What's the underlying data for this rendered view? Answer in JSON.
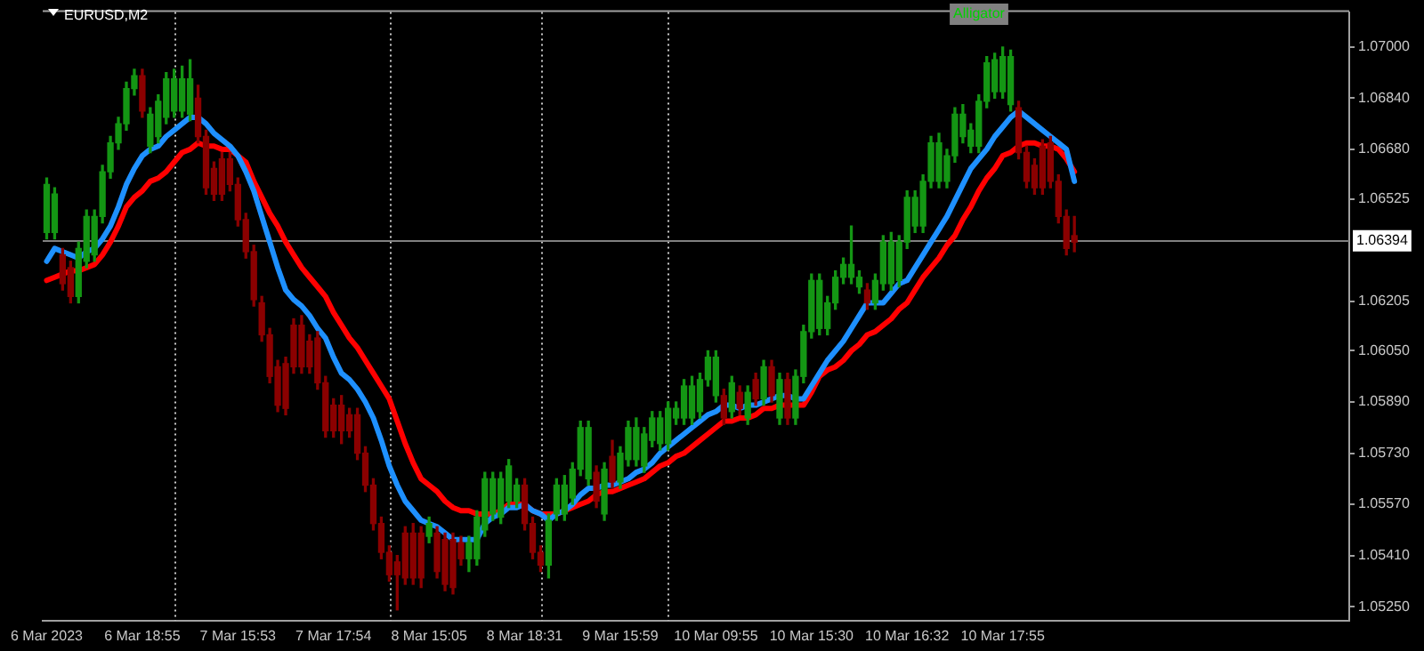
{
  "chart_data": {
    "type": "candlestick",
    "title": "EURUSD,M2",
    "annotations": [
      "Alligator"
    ],
    "categories": [
      "6 Mar 2023",
      null,
      null,
      null,
      null,
      null,
      null,
      null,
      null,
      null,
      null,
      null,
      "6 Mar 18:55",
      null,
      null,
      null,
      null,
      null,
      null,
      null,
      null,
      null,
      null,
      null,
      "7 Mar 15:53",
      null,
      null,
      null,
      null,
      null,
      null,
      null,
      null,
      null,
      null,
      null,
      "7 Mar 17:54",
      null,
      null,
      null,
      null,
      null,
      null,
      null,
      null,
      null,
      null,
      null,
      "8 Mar 15:05",
      null,
      null,
      null,
      null,
      null,
      null,
      null,
      null,
      null,
      null,
      null,
      "8 Mar 18:31",
      null,
      null,
      null,
      null,
      null,
      null,
      null,
      null,
      null,
      null,
      null,
      "9 Mar 15:59",
      null,
      null,
      null,
      null,
      null,
      null,
      null,
      null,
      null,
      null,
      null,
      "10 Mar 09:55",
      null,
      null,
      null,
      null,
      null,
      null,
      null,
      null,
      null,
      null,
      null,
      "10 Mar 15:30",
      null,
      null,
      null,
      null,
      null,
      null,
      null,
      null,
      null,
      null,
      null,
      "10 Mar 16:32",
      null,
      null,
      null,
      null,
      null,
      null,
      null,
      null,
      null,
      null,
      null,
      "10 Mar 17:55",
      null,
      null,
      null,
      null,
      null,
      null,
      null,
      null,
      null,
      null,
      null,
      null,
      null,
      null,
      null,
      null,
      null,
      null,
      null,
      null,
      null,
      null,
      null,
      null,
      null,
      null,
      null,
      null,
      null,
      null,
      null,
      null,
      null,
      null,
      null,
      null,
      null,
      null,
      null,
      null,
      null,
      null,
      null
    ],
    "ohlc": [
      [
        1.0642,
        1.0659,
        1.064,
        1.0657
      ],
      [
        1.0642,
        1.0656,
        1.064,
        1.0654
      ],
      [
        1.0635,
        1.0637,
        1.0624,
        1.0626
      ],
      [
        1.0631,
        1.0633,
        1.062,
        1.0622
      ],
      [
        1.0622,
        1.0639,
        1.062,
        1.0637
      ],
      [
        1.0633,
        1.0649,
        1.0631,
        1.0647
      ],
      [
        1.0635,
        1.0649,
        1.0633,
        1.0647
      ],
      [
        1.0647,
        1.0663,
        1.0645,
        1.0661
      ],
      [
        1.0661,
        1.0672,
        1.0659,
        1.067
      ],
      [
        1.067,
        1.0678,
        1.0668,
        1.0676
      ],
      [
        1.0676,
        1.0689,
        1.0674,
        1.0687
      ],
      [
        1.0687,
        1.0693,
        1.0685,
        1.0691
      ],
      [
        1.0691,
        1.0693,
        1.0678,
        1.068
      ],
      [
        1.0669,
        1.0681,
        1.0667,
        1.0679
      ],
      [
        1.0672,
        1.0685,
        1.067,
        1.0683
      ],
      [
        1.0678,
        1.0692,
        1.0676,
        1.069
      ],
      [
        1.068,
        1.0693,
        1.0678,
        1.069
      ],
      [
        1.068,
        1.0694,
        1.0678,
        1.069
      ],
      [
        1.0679,
        1.0696,
        1.0677,
        1.069
      ],
      [
        1.0684,
        1.0688,
        1.067,
        1.0672
      ],
      [
        1.0672,
        1.0674,
        1.0654,
        1.0656
      ],
      [
        1.0662,
        1.0664,
        1.0652,
        1.0654
      ],
      [
        1.0665,
        1.0667,
        1.0652,
        1.0654
      ],
      [
        1.0665,
        1.0667,
        1.0655,
        1.0657
      ],
      [
        1.0657,
        1.0659,
        1.0644,
        1.0646
      ],
      [
        1.0646,
        1.0648,
        1.0634,
        1.0636
      ],
      [
        1.0636,
        1.0638,
        1.0619,
        1.0621
      ],
      [
        1.062,
        1.0622,
        1.0608,
        1.061
      ],
      [
        1.061,
        1.0612,
        1.0595,
        1.0597
      ],
      [
        1.06,
        1.0602,
        1.0586,
        1.0588
      ],
      [
        1.0601,
        1.0603,
        1.0585,
        1.0587
      ],
      [
        1.0613,
        1.0615,
        1.0598,
        1.06
      ],
      [
        1.0613,
        1.0616,
        1.0598,
        1.06
      ],
      [
        1.0608,
        1.061,
        1.0598,
        1.06
      ],
      [
        1.0609,
        1.0611,
        1.0593,
        1.0595
      ],
      [
        1.0595,
        1.0597,
        1.0578,
        1.058
      ],
      [
        1.0588,
        1.059,
        1.0578,
        1.058
      ],
      [
        1.0588,
        1.0591,
        1.0576,
        1.058
      ],
      [
        1.0585,
        1.0587,
        1.0578,
        1.058
      ],
      [
        1.0585,
        1.0587,
        1.0571,
        1.0573
      ],
      [
        1.0573,
        1.0575,
        1.0561,
        1.0563
      ],
      [
        1.0563,
        1.0565,
        1.0549,
        1.0551
      ],
      [
        1.0551,
        1.0553,
        1.054,
        1.0542
      ],
      [
        1.0542,
        1.0544,
        1.0533,
        1.0535
      ],
      [
        1.0539,
        1.0541,
        1.0524,
        1.0535
      ],
      [
        1.0548,
        1.055,
        1.0532,
        1.0534
      ],
      [
        1.0548,
        1.0551,
        1.0532,
        1.0534
      ],
      [
        1.0548,
        1.055,
        1.0531,
        1.0534
      ],
      [
        1.0547,
        1.0553,
        1.0545,
        1.0551
      ],
      [
        1.0548,
        1.055,
        1.0534,
        1.0536
      ],
      [
        1.0546,
        1.0548,
        1.053,
        1.0532
      ],
      [
        1.0546,
        1.0548,
        1.0529,
        1.0531
      ],
      [
        1.0545,
        1.0547,
        1.0538,
        1.054
      ],
      [
        1.054,
        1.0547,
        1.0536,
        1.0545
      ],
      [
        1.054,
        1.0555,
        1.0538,
        1.0553
      ],
      [
        1.0549,
        1.0567,
        1.0547,
        1.0565
      ],
      [
        1.0554,
        1.0567,
        1.0552,
        1.0565
      ],
      [
        1.0553,
        1.0567,
        1.0551,
        1.0565
      ],
      [
        1.0558,
        1.0571,
        1.0556,
        1.0569
      ],
      [
        1.0558,
        1.0565,
        1.0556,
        1.0563
      ],
      [
        1.0563,
        1.0565,
        1.0549,
        1.0551
      ],
      [
        1.0551,
        1.0553,
        1.054,
        1.0542
      ],
      [
        1.0542,
        1.0544,
        1.0536,
        1.0538
      ],
      [
        1.0538,
        1.0554,
        1.0534,
        1.0552
      ],
      [
        1.0554,
        1.0565,
        1.0552,
        1.0563
      ],
      [
        1.0554,
        1.0566,
        1.0552,
        1.0563
      ],
      [
        1.0559,
        1.057,
        1.0557,
        1.0568
      ],
      [
        1.0568,
        1.0583,
        1.0566,
        1.0581
      ],
      [
        1.0565,
        1.0583,
        1.0563,
        1.0581
      ],
      [
        1.0567,
        1.0569,
        1.0556,
        1.0558
      ],
      [
        1.0554,
        1.057,
        1.0552,
        1.0568
      ],
      [
        1.0572,
        1.0577,
        1.0562,
        1.0564
      ],
      [
        1.0564,
        1.0575,
        1.0562,
        1.0573
      ],
      [
        1.0571,
        1.0583,
        1.0569,
        1.0581
      ],
      [
        1.0571,
        1.0584,
        1.0569,
        1.0581
      ],
      [
        1.0569,
        1.0581,
        1.0567,
        1.0579
      ],
      [
        1.0577,
        1.0586,
        1.0575,
        1.0584
      ],
      [
        1.0576,
        1.0586,
        1.0574,
        1.0584
      ],
      [
        1.0576,
        1.0589,
        1.0574,
        1.0587
      ],
      [
        1.0584,
        1.0589,
        1.0582,
        1.0587
      ],
      [
        1.0584,
        1.0596,
        1.0582,
        1.0594
      ],
      [
        1.0584,
        1.0597,
        1.0582,
        1.0594
      ],
      [
        1.0586,
        1.0598,
        1.0584,
        1.0596
      ],
      [
        1.0596,
        1.0605,
        1.0594,
        1.0603
      ],
      [
        1.0591,
        1.0605,
        1.0589,
        1.0603
      ],
      [
        1.0591,
        1.0593,
        1.0582,
        1.0584
      ],
      [
        1.0586,
        1.0597,
        1.0584,
        1.0595
      ],
      [
        1.0592,
        1.0594,
        1.0585,
        1.0587
      ],
      [
        1.0584,
        1.0594,
        1.0582,
        1.0592
      ],
      [
        1.0596,
        1.0598,
        1.0588,
        1.059
      ],
      [
        1.059,
        1.0602,
        1.0588,
        1.06
      ],
      [
        1.06,
        1.0602,
        1.0589,
        1.0591
      ],
      [
        1.0584,
        1.0598,
        1.0582,
        1.0596
      ],
      [
        1.0596,
        1.0598,
        1.0582,
        1.0584
      ],
      [
        1.0584,
        1.0599,
        1.0582,
        1.0597
      ],
      [
        1.0597,
        1.0613,
        1.0595,
        1.0611
      ],
      [
        1.0611,
        1.0629,
        1.0609,
        1.0627
      ],
      [
        1.0612,
        1.0629,
        1.061,
        1.0627
      ],
      [
        1.0612,
        1.0622,
        1.061,
        1.062
      ],
      [
        1.062,
        1.063,
        1.0618,
        1.0628
      ],
      [
        1.0628,
        1.0634,
        1.0626,
        1.0632
      ],
      [
        1.0628,
        1.0644,
        1.0626,
        1.0632
      ],
      [
        1.0625,
        1.063,
        1.0623,
        1.0628
      ],
      [
        1.0624,
        1.0626,
        1.0618,
        1.062
      ],
      [
        1.062,
        1.0629,
        1.0618,
        1.0627
      ],
      [
        1.0626,
        1.0641,
        1.0624,
        1.0639
      ],
      [
        1.0626,
        1.0642,
        1.0624,
        1.0639
      ],
      [
        1.0627,
        1.0641,
        1.0625,
        1.0639
      ],
      [
        1.0639,
        1.0655,
        1.0637,
        1.0653
      ],
      [
        1.0644,
        1.0655,
        1.0642,
        1.0653
      ],
      [
        1.0644,
        1.066,
        1.0642,
        1.0658
      ],
      [
        1.0658,
        1.0672,
        1.0656,
        1.067
      ],
      [
        1.0658,
        1.0673,
        1.0656,
        1.067
      ],
      [
        1.0658,
        1.0668,
        1.0656,
        1.0666
      ],
      [
        1.0666,
        1.0681,
        1.0664,
        1.0679
      ],
      [
        1.0672,
        1.0682,
        1.067,
        1.0679
      ],
      [
        1.0669,
        1.0676,
        1.0667,
        1.0674
      ],
      [
        1.0669,
        1.0685,
        1.0667,
        1.0683
      ],
      [
        1.0683,
        1.0697,
        1.0681,
        1.0695
      ],
      [
        1.0686,
        1.0698,
        1.0684,
        1.0696
      ],
      [
        1.0686,
        1.07,
        1.0684,
        1.0697
      ],
      [
        1.0682,
        1.0699,
        1.068,
        1.0697
      ],
      [
        1.0681,
        1.0683,
        1.0665,
        1.0667
      ],
      [
        1.0667,
        1.0669,
        1.0656,
        1.0658
      ],
      [
        1.0663,
        1.0665,
        1.0654,
        1.0656
      ],
      [
        1.0669,
        1.0671,
        1.0654,
        1.0656
      ],
      [
        1.067,
        1.0672,
        1.0656,
        1.0658
      ],
      [
        1.0658,
        1.066,
        1.0645,
        1.0647
      ],
      [
        1.0647,
        1.0649,
        1.0635,
        1.0637
      ],
      [
        1.0641,
        1.0647,
        1.0636,
        1.0639
      ],
      null,
      null,
      null,
      null,
      null,
      null,
      null,
      null,
      null,
      null,
      null,
      null,
      null,
      null,
      null,
      null,
      null,
      null,
      null,
      null,
      null,
      null,
      null,
      null,
      null,
      null,
      null,
      null,
      null,
      null,
      null,
      null,
      null,
      null
    ],
    "colors": [
      "#149614",
      "#149614",
      "#8b0000",
      "#8b0000",
      "#149614",
      "#149614",
      "#149614",
      "#149614",
      "#149614",
      "#149614",
      "#149614",
      "#149614",
      "#8b0000",
      "#149614",
      "#149614",
      "#149614",
      "#149614",
      "#149614",
      "#149614",
      "#8b0000",
      "#8b0000",
      "#8b0000",
      "#8b0000",
      "#8b0000",
      "#8b0000",
      "#8b0000",
      "#8b0000",
      "#8b0000",
      "#8b0000",
      "#8b0000",
      "#8b0000",
      "#8b0000",
      "#8b0000",
      "#8b0000",
      "#8b0000",
      "#8b0000",
      "#8b0000",
      "#8b0000",
      "#8b0000",
      "#8b0000",
      "#8b0000",
      "#8b0000",
      "#8b0000",
      "#8b0000",
      "#8b0000",
      "#8b0000",
      "#8b0000",
      "#8b0000",
      "#149614",
      "#8b0000",
      "#8b0000",
      "#8b0000",
      "#8b0000",
      "#149614",
      "#149614",
      "#149614",
      "#149614",
      "#149614",
      "#149614",
      "#149614",
      "#8b0000",
      "#8b0000",
      "#8b0000",
      "#149614",
      "#149614",
      "#149614",
      "#149614",
      "#149614",
      "#149614",
      "#8b0000",
      "#149614",
      "#8b0000",
      "#149614",
      "#149614",
      "#149614",
      "#149614",
      "#149614",
      "#149614",
      "#149614",
      "#149614",
      "#149614",
      "#149614",
      "#149614",
      "#149614",
      "#149614",
      "#8b0000",
      "#149614",
      "#8b0000",
      "#149614",
      "#8b0000",
      "#149614",
      "#8b0000",
      "#149614",
      "#8b0000",
      "#149614",
      "#149614",
      "#149614",
      "#149614",
      "#149614",
      "#149614",
      "#149614",
      "#149614",
      "#149614",
      "#8b0000",
      "#149614",
      "#149614",
      "#149614",
      "#149614",
      "#149614",
      "#149614",
      "#149614",
      "#149614",
      "#149614",
      "#149614",
      "#149614",
      "#149614",
      "#149614",
      "#149614",
      "#149614",
      "#149614",
      "#149614",
      "#149614",
      "#8b0000",
      "#8b0000",
      "#8b0000",
      "#8b0000",
      "#8b0000",
      "#8b0000",
      "#8b0000",
      "#8b0000",
      null,
      null,
      null,
      null,
      null,
      null,
      null,
      null,
      null,
      null,
      null,
      null,
      null,
      null,
      null,
      null,
      null,
      null,
      null,
      null,
      null,
      null,
      null,
      null,
      null,
      null,
      null,
      null,
      null,
      null,
      null,
      null,
      null,
      null
    ],
    "series": [
      {
        "type": "line",
        "color": "#1e90ff",
        "values": [
          1.0633,
          1.0637,
          1.0636,
          1.0635,
          1.0634,
          1.0636,
          1.0637,
          1.064,
          1.0644,
          1.065,
          1.0657,
          1.0662,
          1.0666,
          1.0668,
          1.0669,
          1.0672,
          1.0674,
          1.0676,
          1.0678,
          1.0678,
          1.0676,
          1.0673,
          1.0671,
          1.0669,
          1.0666,
          1.0661,
          1.0655,
          1.0647,
          1.0639,
          1.0631,
          1.0624,
          1.0621,
          1.0619,
          1.0616,
          1.0612,
          1.0609,
          1.0603,
          1.0598,
          1.0596,
          1.0593,
          1.0589,
          1.0584,
          1.0577,
          1.0569,
          1.0563,
          1.0558,
          1.0555,
          1.0552,
          1.0551,
          1.055,
          1.0548,
          1.0546,
          1.0546,
          1.0546,
          1.0546,
          1.0551,
          1.0553,
          1.0554,
          1.0556,
          1.0556,
          1.0557,
          1.0555,
          1.0554,
          1.0552,
          1.0554,
          1.0555,
          1.0557,
          1.056,
          1.0562,
          1.0562,
          1.0563,
          1.0563,
          1.0564,
          1.0565,
          1.0567,
          1.0568,
          1.057,
          1.0573,
          1.0575,
          1.0577,
          1.0579,
          1.0581,
          1.0583,
          1.0585,
          1.0586,
          1.0588,
          1.0588,
          1.0587,
          1.0588,
          1.0588,
          1.0589,
          1.059,
          1.0591,
          1.0591,
          1.059,
          1.059,
          1.0594,
          1.0598,
          1.0602,
          1.0605,
          1.0608,
          1.0612,
          1.0616,
          1.062,
          1.062,
          1.062,
          1.0623,
          1.0626,
          1.0627,
          1.0631,
          1.0635,
          1.0639,
          1.0643,
          1.0647,
          1.0652,
          1.0657,
          1.0662,
          1.0665,
          1.0668,
          1.0672,
          1.0675,
          1.0678,
          1.068,
          1.0678,
          1.0676,
          1.0674,
          1.0672,
          1.067,
          1.0668,
          1.0658,
          null,
          null,
          null,
          null,
          null,
          null,
          null,
          null,
          null,
          null,
          null,
          null,
          null,
          null,
          null,
          null,
          null,
          null,
          null,
          null,
          null,
          null,
          null,
          null,
          null,
          null,
          null,
          null,
          null,
          null,
          null,
          null,
          null,
          null
        ]
      },
      {
        "type": "line",
        "color": "#ff0000",
        "values": [
          1.0627,
          1.0628,
          1.0629,
          1.063,
          1.063,
          1.0631,
          1.0632,
          1.0635,
          1.0639,
          1.0644,
          1.065,
          1.0653,
          1.0655,
          1.0658,
          1.0659,
          1.0661,
          1.0664,
          1.0667,
          1.0668,
          1.067,
          1.0669,
          1.0669,
          1.0668,
          1.0668,
          1.0666,
          1.0664,
          1.0658,
          1.0653,
          1.0648,
          1.0644,
          1.0639,
          1.0635,
          1.0631,
          1.0628,
          1.0625,
          1.0622,
          1.0617,
          1.0613,
          1.0609,
          1.0606,
          1.0602,
          1.0598,
          1.0594,
          1.059,
          1.0583,
          1.0576,
          1.057,
          1.0565,
          1.0563,
          1.0561,
          1.0558,
          1.0556,
          1.0555,
          1.0555,
          1.0554,
          1.0554,
          1.0554,
          1.0555,
          1.0557,
          1.0557,
          1.0557,
          1.0555,
          1.0554,
          1.0554,
          1.0554,
          1.0555,
          1.0556,
          1.0557,
          1.0558,
          1.056,
          1.0561,
          1.0561,
          1.0562,
          1.0563,
          1.0564,
          1.0565,
          1.0567,
          1.0569,
          1.057,
          1.0572,
          1.0573,
          1.0575,
          1.0577,
          1.0579,
          1.0581,
          1.0583,
          1.0583,
          1.0584,
          1.0584,
          1.0585,
          1.0587,
          1.0587,
          1.0588,
          1.0588,
          1.0588,
          1.0588,
          1.0592,
          1.0597,
          1.0599,
          1.06,
          1.0602,
          1.0605,
          1.0607,
          1.061,
          1.0611,
          1.0613,
          1.0615,
          1.0618,
          1.062,
          1.0624,
          1.0628,
          1.0631,
          1.0634,
          1.0638,
          1.0641,
          1.0646,
          1.065,
          1.0655,
          1.0659,
          1.0662,
          1.0666,
          1.0667,
          1.0669,
          1.067,
          1.067,
          1.0669,
          1.0669,
          1.0668,
          1.0665,
          1.0661,
          null,
          null,
          null,
          null,
          null,
          null,
          null,
          null,
          null,
          null,
          null,
          null,
          null,
          null,
          null,
          null,
          null,
          null,
          null,
          null,
          null,
          null,
          null,
          null,
          null,
          null,
          null,
          null,
          null,
          null,
          null,
          null,
          null,
          null
        ]
      }
    ],
    "ylim": [
      1.05206,
      1.07109
    ],
    "yticks": [
      {
        "value": 1.07,
        "label": "1.07000"
      },
      {
        "value": 1.0684,
        "label": "1.06840"
      },
      {
        "value": 1.0668,
        "label": "1.06680"
      },
      {
        "value": 1.06525,
        "label": "1.06525"
      },
      {
        "value": 1.06205,
        "label": "1.06205"
      },
      {
        "value": 1.0605,
        "label": "1.06050"
      },
      {
        "value": 1.0589,
        "label": "1.05890"
      },
      {
        "value": 1.0573,
        "label": "1.05730"
      },
      {
        "value": 1.0557,
        "label": "1.05570"
      },
      {
        "value": 1.0541,
        "label": "1.05410"
      },
      {
        "value": 1.0525,
        "label": "1.05250"
      }
    ],
    "ref_lines": [
      {
        "axis": "y",
        "value": 1.06394,
        "label": "1.06394",
        "color": "#808080"
      }
    ]
  }
}
